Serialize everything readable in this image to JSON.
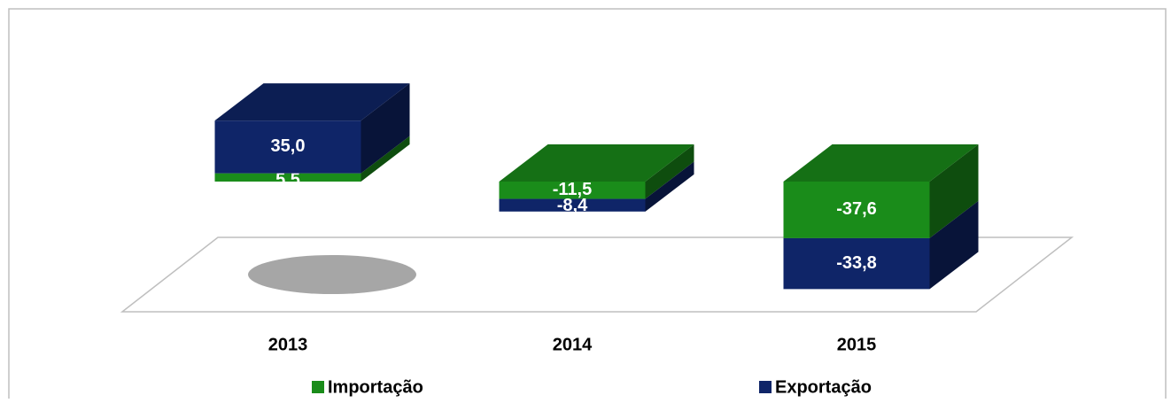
{
  "chart_data": {
    "type": "bar3d-stacked",
    "categories": [
      "2013",
      "2014",
      "2015"
    ],
    "series": [
      {
        "name": "Importação",
        "color": "#1a8c1a",
        "values": [
          5.5,
          -11.5,
          -37.6
        ],
        "value_labels": [
          "5,5",
          "-11,5",
          "-37,6"
        ]
      },
      {
        "name": "Exportação",
        "color": "#0f2568",
        "values": [
          35.0,
          -8.4,
          -33.8
        ],
        "value_labels": [
          "35,0",
          "-8,4",
          "-33,8"
        ]
      }
    ],
    "legend": "bottom"
  }
}
